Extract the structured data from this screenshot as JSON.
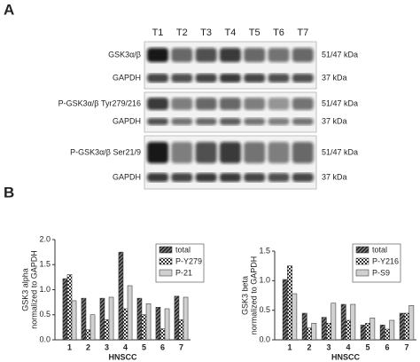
{
  "panel_labels": [
    "A",
    "B"
  ],
  "blot": {
    "lanes": [
      "T1",
      "T2",
      "T3",
      "T4",
      "T5",
      "T6",
      "T7"
    ],
    "rows": [
      {
        "label": "GSK3α/β",
        "size": "51/47 kDa"
      },
      {
        "label": "GAPDH",
        "size": "37 kDa"
      },
      {
        "label": "P-GSK3α/β Tyr279/216",
        "size": "51/47 kDa"
      },
      {
        "label": "GAPDH",
        "size": "37 kDa"
      },
      {
        "label": "P-GSK3α/β Ser21/9",
        "size": "51/47 kDa"
      },
      {
        "label": "GAPDH",
        "size": "37 kDa"
      }
    ]
  },
  "chart_data": [
    {
      "type": "bar",
      "ylabel": [
        "GSK3 alpha",
        "normalized to GAPDH"
      ],
      "xlabel": "HNSCC",
      "categories": [
        "1",
        "2",
        "3",
        "4",
        "5",
        "6",
        "7"
      ],
      "series": [
        {
          "name": "total",
          "color": "#333333",
          "pattern": "hatch",
          "values": [
            1.22,
            0.83,
            0.83,
            1.75,
            0.83,
            0.65,
            0.87
          ]
        },
        {
          "name": "P-Y279",
          "color": "#555555",
          "pattern": "check",
          "values": [
            1.3,
            0.2,
            0.4,
            0.62,
            0.5,
            0.22,
            0.4
          ]
        },
        {
          "name": "P-21",
          "color": "#d0d0d0",
          "pattern": "solid",
          "values": [
            0.78,
            0.5,
            0.85,
            1.08,
            0.72,
            0.62,
            0.85
          ]
        }
      ],
      "ylim": [
        0,
        2
      ],
      "yticks": [
        {
          "value": 0,
          "label": "0.0"
        },
        {
          "value": 0.5,
          "label": "0.5"
        },
        {
          "value": 1,
          "label": "1.0"
        },
        {
          "value": 1.5,
          "label": "1.5"
        },
        {
          "value": 2,
          "label": "2.0"
        }
      ],
      "legend": "upper right"
    },
    {
      "type": "bar",
      "ylabel": [
        "GSK3 beta",
        "normalized to GAPDH"
      ],
      "xlabel": "HNSCC",
      "categories": [
        "1",
        "2",
        "3",
        "4",
        "5",
        "6",
        "7"
      ],
      "series": [
        {
          "name": "total",
          "color": "#333333",
          "pattern": "hatch",
          "values": [
            1.02,
            0.45,
            0.38,
            0.6,
            0.25,
            0.25,
            0.45
          ]
        },
        {
          "name": "P-Y216",
          "color": "#555555",
          "pattern": "check",
          "values": [
            1.25,
            0.2,
            0.28,
            0.33,
            0.28,
            0.18,
            0.45
          ]
        },
        {
          "name": "P-S9",
          "color": "#d0d0d0",
          "pattern": "solid",
          "values": [
            0.78,
            0.28,
            0.62,
            0.6,
            0.37,
            0.33,
            0.58
          ]
        }
      ],
      "ylim": [
        0,
        1.5
      ],
      "yticks": [
        {
          "value": 0,
          "label": "0.0"
        },
        {
          "value": 0.5,
          "label": "0.5"
        },
        {
          "value": 1,
          "label": "1.0"
        },
        {
          "value": 1.5,
          "label": "1.5"
        }
      ],
      "legend": "upper right"
    }
  ]
}
